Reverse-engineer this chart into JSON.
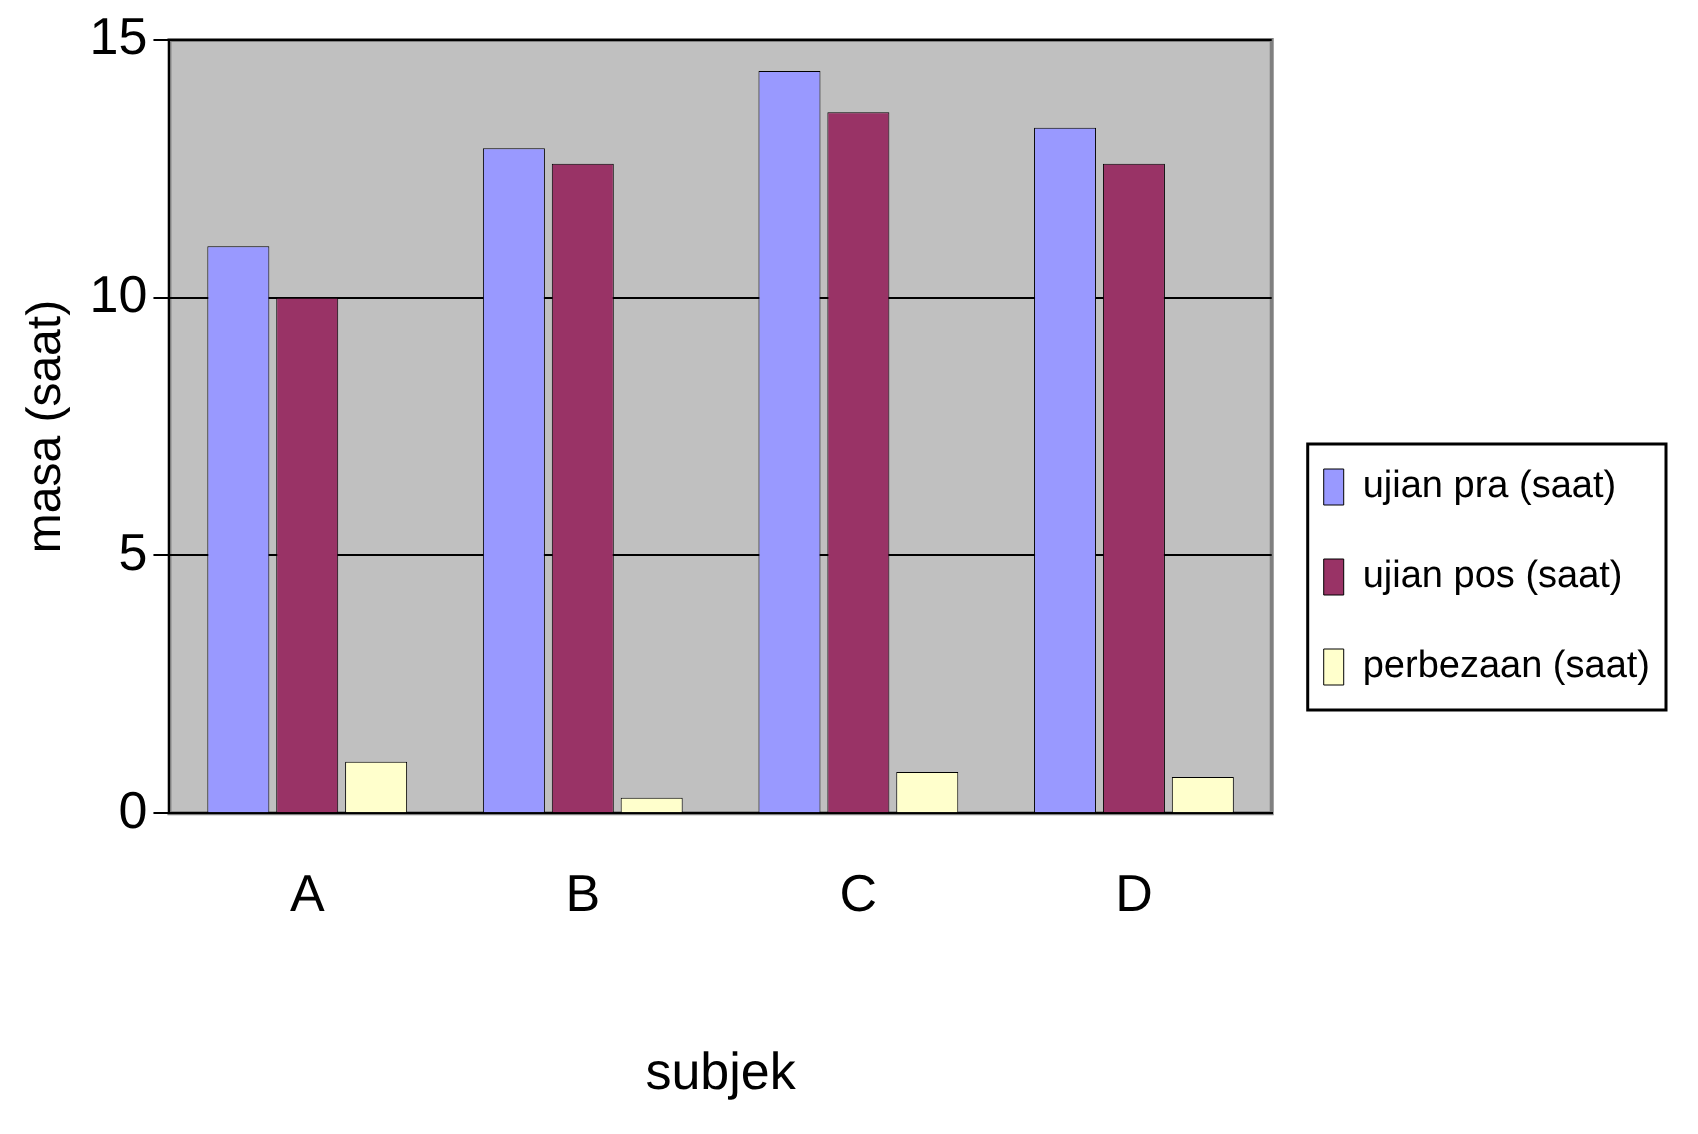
{
  "chart_data": {
    "type": "bar",
    "xlabel": "subjek",
    "ylabel": "masa (saat)",
    "categories": [
      "A",
      "B",
      "C",
      "D"
    ],
    "series": [
      {
        "name": "ujian pra (saat)",
        "color": "#9999ff",
        "values": [
          11,
          12.9,
          14.4,
          13.3
        ]
      },
      {
        "name": "ujian pos (saat)",
        "color": "#993366",
        "values": [
          10,
          12.6,
          13.6,
          12.6
        ]
      },
      {
        "name": "perbezaan (saat)",
        "color": "#ffffcc",
        "values": [
          1,
          0.3,
          0.8,
          0.7
        ]
      }
    ],
    "ylim": [
      0,
      15
    ],
    "yticks": [
      0,
      5,
      10,
      15
    ],
    "grid": "y",
    "legend": "right"
  }
}
